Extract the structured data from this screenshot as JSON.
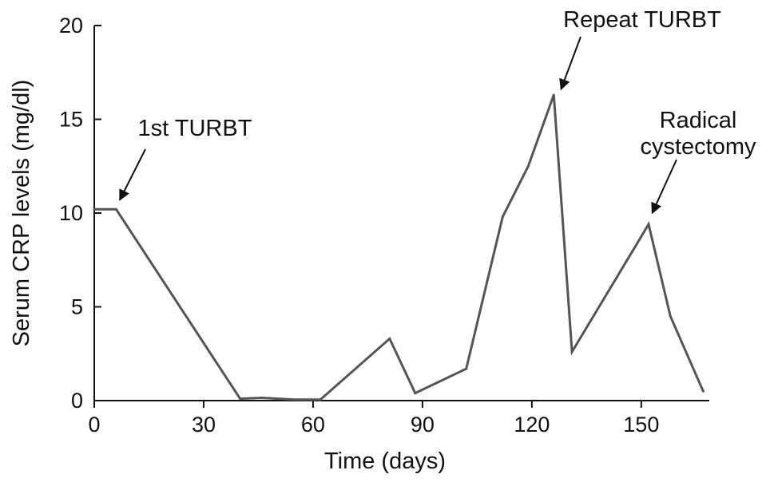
{
  "chart_data": {
    "type": "line",
    "title": "",
    "xlabel": "Time (days)",
    "ylabel": "Serum CRP levels (mg/dl)",
    "xlim": [
      0,
      168
    ],
    "ylim": [
      0,
      20
    ],
    "xticks": [
      0,
      30,
      60,
      90,
      120,
      150
    ],
    "yticks": [
      0,
      5,
      10,
      15,
      20
    ],
    "grid": false,
    "legend": "none",
    "line_color": "#555555",
    "series": [
      {
        "x": [
          0,
          6,
          40,
          46,
          55,
          62,
          81,
          88,
          102,
          112,
          119,
          126,
          131,
          152,
          158,
          167
        ],
        "y": [
          10.2,
          10.2,
          0.1,
          0.15,
          0.05,
          0.05,
          3.3,
          0.4,
          1.7,
          9.8,
          12.5,
          16.3,
          2.6,
          9.4,
          4.5,
          0.5
        ]
      }
    ],
    "annotations": [
      {
        "lines": [
          "1st TURBT"
        ],
        "target": [
          7,
          10.7
        ]
      },
      {
        "lines": [
          "Repeat TURBT"
        ],
        "target": [
          128,
          16.6
        ]
      },
      {
        "lines": [
          "Radical",
          "cystectomy"
        ],
        "target": [
          153,
          10.0
        ]
      }
    ]
  }
}
